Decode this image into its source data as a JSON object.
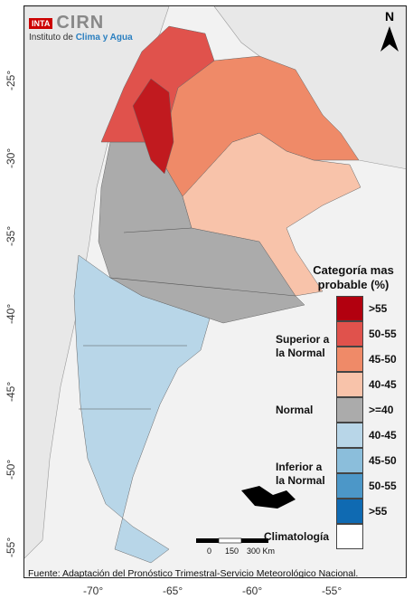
{
  "logo": {
    "badge": "INTA",
    "name": "CIRN",
    "subtitle_prefix": "Instituto de ",
    "subtitle_highlight": "Clima y Agua"
  },
  "north_label": "N",
  "latitude_labels": [
    "-25°",
    "-30°",
    "-35°",
    "-40°",
    "-45°",
    "-50°",
    "-55°"
  ],
  "longitude_labels": [
    "-70°",
    "-65°",
    "-60°",
    "-55°"
  ],
  "legend": {
    "title": "Categoría mas probable (%)",
    "categories": [
      {
        "name": "Superior a la Normal",
        "colors": [
          "#b2000f",
          "#e0524c",
          "#ef8a68",
          "#f8c3aa"
        ],
        "labels": [
          ">55",
          "50-55",
          "45-50",
          "40-45"
        ]
      },
      {
        "name": "Normal",
        "colors": [
          "#ababab"
        ],
        "labels": [
          ">=40"
        ]
      },
      {
        "name": "Inferior a la Normal",
        "colors": [
          "#b8d6e8",
          "#8bbedb",
          "#4c97c8",
          "#0f6ab2"
        ],
        "labels": [
          "40-45",
          "45-50",
          "50-55",
          ">55"
        ]
      },
      {
        "name": "Climatología",
        "colors": [
          "#ffffff"
        ],
        "labels": [
          ""
        ]
      }
    ]
  },
  "scale_bar": {
    "labels": [
      "0",
      "150",
      "300 Km"
    ]
  },
  "footnote": "Fuente: Adaptación del Pronóstico Trimestral-Servicio Meteorológico Nacional."
}
